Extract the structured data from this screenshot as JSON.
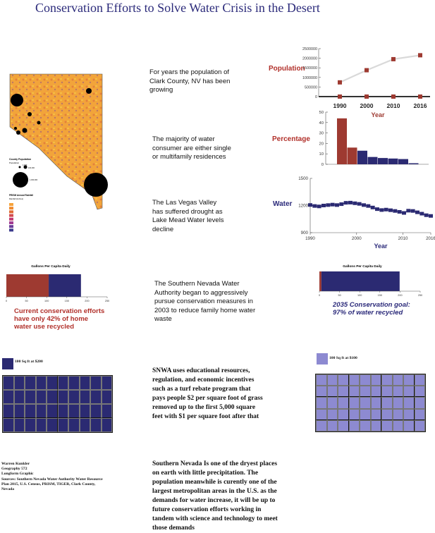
{
  "title": "Conservation Efforts to Solve Water Crisis in the Desert",
  "text_blocks": {
    "population": "For years the population of Clark County, NV has been growing",
    "consumers": "The majority of water consumer are either single or multifamily residences",
    "drought": "The Las Vegas Valley has suffered drought as Lake Mead Water levels decline",
    "authority": "The Southern Nevada Water Authority began to aggressively pursue conservation measures in 2003 to reduce family home water waste",
    "snwa": "SNWA uses educational resources, regulation, and economic incentives such as a turf rebate program that pays people $2 per square foot of grass removed up to the first 5,000 square feet with $1 per square foot after that",
    "conclusion": "Southern Nevada Is one of the dryest places on earth with little precipitation. The population meanwhile is curently one of the largest metropolitan areas in the U.S. as the demands for water increase, it will be up to future conservation efforts working in tandem with science and technology to meet those demands"
  },
  "side_labels": {
    "population": "Population",
    "percentage": "Percentage",
    "water": "Water"
  },
  "captions": {
    "current": "Current conservation efforts have only 42% of home water use recycled",
    "goal": "2035 Conservation goal: 97% of water recycled"
  },
  "legends": {
    "left": "100 Sq ft at $200",
    "right": "100 Sq ft at $100"
  },
  "map_legend": {
    "title": "County Population",
    "subtitle": "Population",
    "sizes": [
      "1,000",
      "100,000",
      "1,000,000"
    ],
    "elev_title": "PRISM Annual Rainfall",
    "elev_sub": "Rainfall (inches)",
    "colors": [
      "#f6a33b",
      "#f08a2d",
      "#e06a33",
      "#d24a4e",
      "#c23a72",
      "#a03a92",
      "#6a3a98",
      "#3b3a8c"
    ]
  },
  "credits": {
    "lines": [
      "Warren Kunkler",
      "Geography 572",
      "Longform Graphic",
      "Sources: Southern Nevada Water Authority Water Resource Plan 2015, U.S. Census, PRISM, TIGER, Clark County, Nevada"
    ]
  },
  "colors": {
    "red": "#9e3a31",
    "navy": "#2b2a72",
    "lightpurple": "#8d8ad1",
    "title": "#2b2a7a",
    "captionred": "#b1302a"
  },
  "chart_data": [
    {
      "id": "population",
      "type": "scatter",
      "title": "",
      "xlabel": "Year",
      "ylabel": "",
      "x": [
        1990,
        2000,
        2010,
        2016
      ],
      "series": [
        {
          "values": [
            741459,
            1375765,
            1951269,
            2155664
          ]
        }
      ],
      "ylim": [
        0,
        2500000
      ],
      "y_ticks": [
        "2500000",
        "2000000",
        "1500000",
        "1000000",
        "500000",
        "0"
      ],
      "x_ticks": [
        "1990",
        "2000",
        "2010",
        "2016"
      ]
    },
    {
      "id": "percentage",
      "type": "bar",
      "title": "",
      "xlabel": "",
      "ylabel": "",
      "values": [
        44,
        16,
        13,
        7,
        6,
        5.5,
        5,
        1
      ],
      "bar_colors": [
        "#9e3a31",
        "#9e3a31",
        "#2b2a72",
        "#2b2a72",
        "#2b2a72",
        "#2b2a72",
        "#2b2a72",
        "#2b2a72"
      ],
      "ylim": [
        0,
        50
      ],
      "y_ticks": [
        "50",
        "40",
        "30",
        "20",
        "10",
        "0"
      ]
    },
    {
      "id": "water",
      "type": "line",
      "title": "",
      "xlabel": "Year",
      "ylabel": "",
      "x_start": 1990,
      "values": [
        1206,
        1195,
        1190,
        1200,
        1205,
        1210,
        1205,
        1215,
        1230,
        1232,
        1225,
        1218,
        1205,
        1195,
        1178,
        1160,
        1150,
        1155,
        1148,
        1140,
        1130,
        1118,
        1143,
        1140,
        1125,
        1110,
        1093,
        1085
      ],
      "xlim": [
        1990,
        2016
      ],
      "ylim": [
        900,
        1500
      ],
      "y_ticks": [
        "1500",
        "1200",
        "900"
      ],
      "x_ticks": [
        "1990",
        "2000",
        "2010",
        "2016"
      ]
    },
    {
      "id": "current",
      "type": "bar",
      "title": "Gallons Per Capita Daily",
      "segments": [
        {
          "value": 105,
          "color": "#9e3a31"
        },
        {
          "value": 80,
          "color": "#2b2a72"
        }
      ],
      "xlim": [
        0,
        250
      ],
      "x_ticks": [
        "0",
        "50",
        "100",
        "150",
        "200",
        "250"
      ]
    },
    {
      "id": "goal",
      "type": "bar",
      "title": "Gallons Per Capita Daily",
      "segments": [
        {
          "value": 5,
          "color": "#9e3a31"
        },
        {
          "value": 194,
          "color": "#2b2a72"
        }
      ],
      "xlim": [
        0,
        250
      ],
      "x_ticks": [
        "0",
        "50",
        "100",
        "150",
        "200",
        "250"
      ]
    }
  ]
}
